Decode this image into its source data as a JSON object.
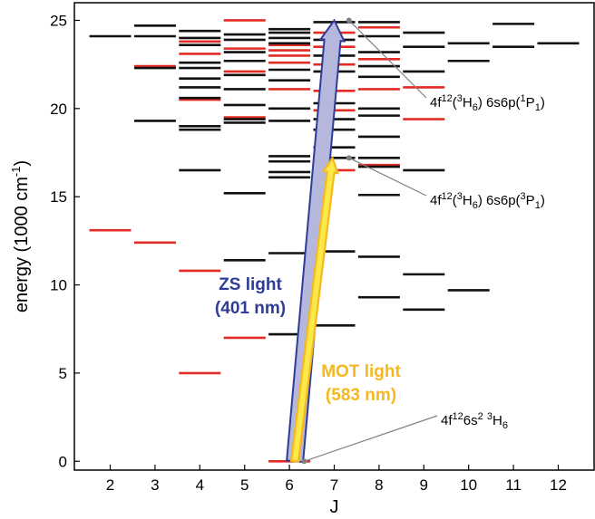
{
  "chart_data": {
    "type": "scatter",
    "title": "",
    "xlabel": "J",
    "ylabel_main": "energy (1000 cm",
    "ylabel_sup": "-1",
    "ylabel_end": ")",
    "xlim": [
      1.2,
      12.8
    ],
    "ylim": [
      -0.5,
      26
    ],
    "xticks": [
      2,
      3,
      4,
      5,
      6,
      7,
      8,
      9,
      10,
      11,
      12
    ],
    "yticks": [
      0,
      5,
      10,
      15,
      20,
      25
    ],
    "grid": false,
    "colors": {
      "even": "#e32b24",
      "odd": "#111111",
      "zs": "#2e3d97",
      "zs_fill": "#b5b8dc",
      "mot": "#f6b91d",
      "mot_inner": "#fde84a",
      "leader": "#808080"
    },
    "series": [
      {
        "parity": "even",
        "points": [
          [
            2,
            13.1
          ],
          [
            3,
            12.4
          ],
          [
            3,
            22.4
          ],
          [
            4,
            5.0
          ],
          [
            4,
            10.8
          ],
          [
            4,
            20.5
          ],
          [
            4,
            23.1
          ],
          [
            4,
            23.8
          ],
          [
            5,
            7.0
          ],
          [
            5,
            19.5
          ],
          [
            5,
            22.1
          ],
          [
            5,
            23.4
          ],
          [
            5,
            25.0
          ],
          [
            6,
            0.0
          ],
          [
            6,
            21.1
          ],
          [
            6,
            22.6
          ],
          [
            6,
            23.0
          ],
          [
            6,
            23.3
          ],
          [
            6,
            23.6
          ],
          [
            7,
            16.5
          ],
          [
            7,
            19.9
          ],
          [
            7,
            21.0
          ],
          [
            7,
            22.5
          ],
          [
            7,
            23.5
          ],
          [
            7,
            24.3
          ],
          [
            8,
            16.8
          ],
          [
            8,
            21.1
          ],
          [
            8,
            22.8
          ],
          [
            8,
            24.6
          ],
          [
            9,
            19.4
          ],
          [
            9,
            21.2
          ]
        ]
      },
      {
        "parity": "odd",
        "points": [
          [
            2,
            24.1
          ],
          [
            3,
            19.3
          ],
          [
            3,
            22.3
          ],
          [
            3,
            24.1
          ],
          [
            3,
            24.7
          ],
          [
            4,
            16.5
          ],
          [
            4,
            18.8
          ],
          [
            4,
            19.0
          ],
          [
            4,
            20.6
          ],
          [
            4,
            21.2
          ],
          [
            4,
            21.7
          ],
          [
            4,
            22.3
          ],
          [
            4,
            22.6
          ],
          [
            4,
            23.6
          ],
          [
            4,
            24.0
          ],
          [
            4,
            24.4
          ],
          [
            5,
            11.4
          ],
          [
            5,
            15.2
          ],
          [
            5,
            19.2
          ],
          [
            5,
            19.4
          ],
          [
            5,
            20.2
          ],
          [
            5,
            21.1
          ],
          [
            5,
            21.9
          ],
          [
            5,
            22.7
          ],
          [
            5,
            23.2
          ],
          [
            5,
            23.9
          ],
          [
            5,
            24.2
          ],
          [
            6,
            7.2
          ],
          [
            6,
            11.8
          ],
          [
            6,
            16.1
          ],
          [
            6,
            16.4
          ],
          [
            6,
            17.0
          ],
          [
            6,
            17.3
          ],
          [
            6,
            19.3
          ],
          [
            6,
            20.0
          ],
          [
            6,
            21.6
          ],
          [
            6,
            22.2
          ],
          [
            6,
            23.7
          ],
          [
            6,
            24.0
          ],
          [
            6,
            24.3
          ],
          [
            6,
            24.5
          ],
          [
            7,
            7.7
          ],
          [
            7,
            11.9
          ],
          [
            7,
            17.2
          ],
          [
            7,
            17.8
          ],
          [
            7,
            18.8
          ],
          [
            7,
            19.4
          ],
          [
            7,
            20.3
          ],
          [
            7,
            22.1
          ],
          [
            7,
            23.0
          ],
          [
            7,
            23.9
          ],
          [
            7,
            24.9
          ],
          [
            8,
            9.3
          ],
          [
            8,
            11.6
          ],
          [
            8,
            15.1
          ],
          [
            8,
            16.7
          ],
          [
            8,
            17.2
          ],
          [
            8,
            18.4
          ],
          [
            8,
            19.6
          ],
          [
            8,
            20.0
          ],
          [
            8,
            21.8
          ],
          [
            8,
            22.4
          ],
          [
            8,
            23.2
          ],
          [
            8,
            24.1
          ],
          [
            8,
            24.9
          ],
          [
            9,
            8.6
          ],
          [
            9,
            10.6
          ],
          [
            9,
            16.5
          ],
          [
            9,
            22.1
          ],
          [
            9,
            23.5
          ],
          [
            9,
            24.3
          ],
          [
            10,
            9.7
          ],
          [
            10,
            22.7
          ],
          [
            10,
            23.7
          ],
          [
            11,
            23.5
          ],
          [
            11,
            24.8
          ],
          [
            12,
            23.7
          ]
        ]
      }
    ],
    "transitions": [
      {
        "label_line1": "ZS light",
        "label_line2": "(401 nm)",
        "from": [
          6,
          0
        ],
        "to": [
          7,
          25.0
        ]
      },
      {
        "label_line1": "MOT light",
        "label_line2": "(583 nm)",
        "from": [
          6,
          0
        ],
        "to": [
          7,
          17.2
        ]
      }
    ],
    "annotations": [
      {
        "parts": [
          [
            "4f",
            ""
          ],
          [
            "12",
            "sup"
          ],
          [
            "(",
            ""
          ],
          [
            "3",
            "sup"
          ],
          [
            "H",
            ""
          ],
          [
            "6",
            "sub"
          ],
          [
            ") 6s6p(",
            ""
          ],
          [
            "1",
            "sup"
          ],
          [
            "P",
            ""
          ],
          [
            "1",
            "sub"
          ],
          [
            ")",
            ""
          ]
        ],
        "point": [
          7.33,
          25.0
        ]
      },
      {
        "parts": [
          [
            "4f",
            ""
          ],
          [
            "12",
            "sup"
          ],
          [
            "(",
            ""
          ],
          [
            "3",
            "sup"
          ],
          [
            "H",
            ""
          ],
          [
            "6",
            "sub"
          ],
          [
            ") 6s6p(",
            ""
          ],
          [
            "3",
            "sup"
          ],
          [
            "P",
            ""
          ],
          [
            "1",
            "sub"
          ],
          [
            ")",
            ""
          ]
        ],
        "point": [
          7.33,
          17.2
        ]
      },
      {
        "parts": [
          [
            "4f",
            ""
          ],
          [
            "12",
            "sup"
          ],
          [
            "6s",
            ""
          ],
          [
            "2",
            "sup"
          ],
          [
            " ",
            ""
          ],
          [
            "3",
            "sup"
          ],
          [
            "H",
            ""
          ],
          [
            "6",
            "sub"
          ]
        ],
        "point": [
          6.33,
          0.0
        ]
      }
    ]
  }
}
